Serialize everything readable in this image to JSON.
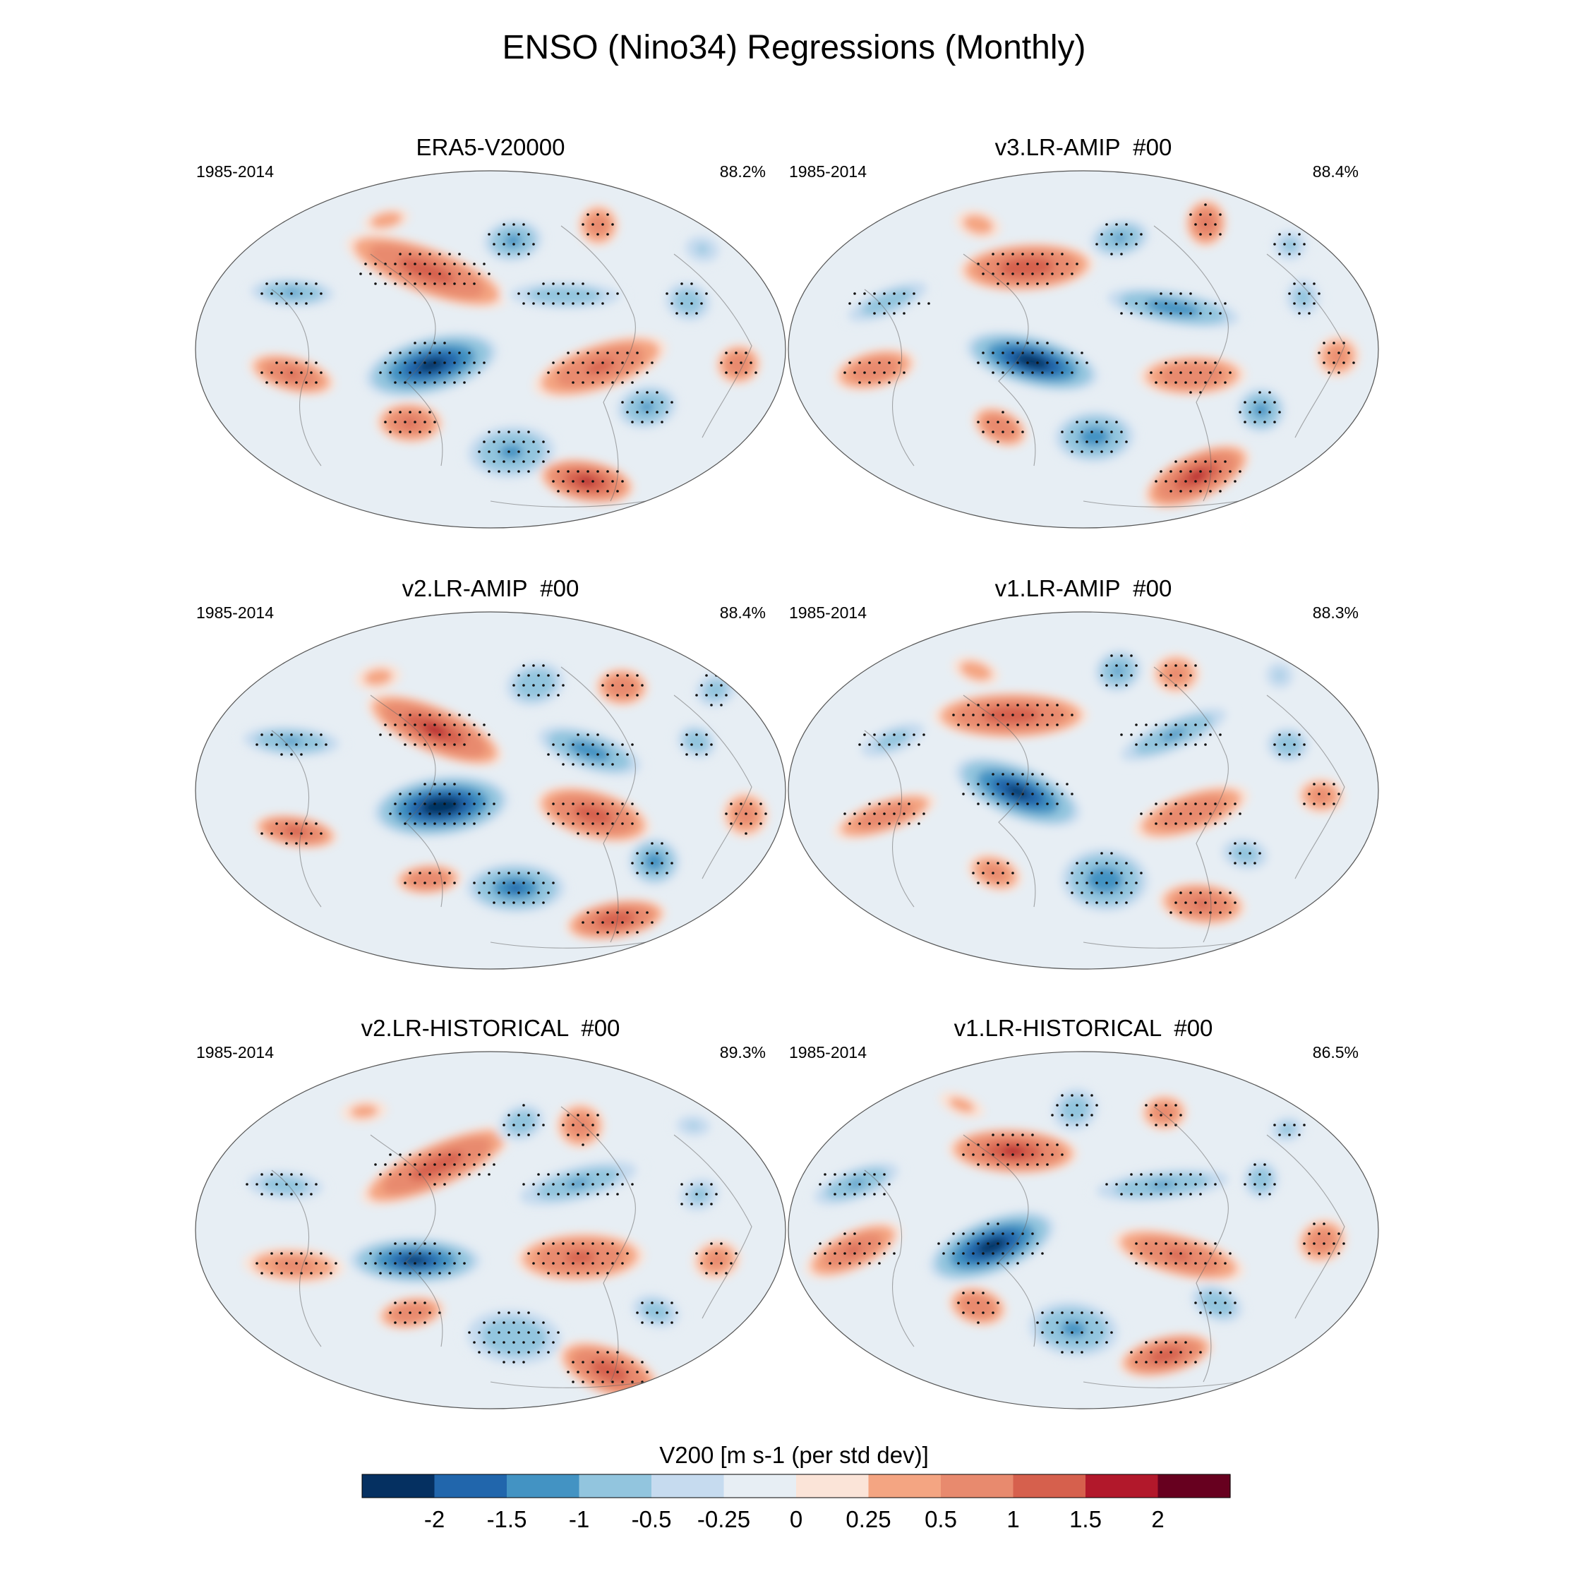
{
  "title": "ENSO (Nino34) Regressions (Monthly)",
  "chart_data": {
    "type": "heatmap",
    "variable_label": "V200 [m s-1 (per std dev)]",
    "projection": "global map (elliptical)",
    "colorbar": {
      "tick_labels": [
        "-2",
        "-1.5",
        "-1",
        "-0.5",
        "-0.25",
        "0",
        "0.25",
        "0.5",
        "1",
        "1.5",
        "2"
      ],
      "colors": [
        "#053061",
        "#2166ac",
        "#4393c3",
        "#92c5de",
        "#c6dbef",
        "#e7eef4",
        "#fbe4d8",
        "#f4a582",
        "#e88a6e",
        "#d6604d",
        "#b2182b",
        "#67001f"
      ]
    },
    "panels": [
      {
        "name": "ERA5-V20000",
        "period": "1985-2014",
        "pattern_stat": "88.2%"
      },
      {
        "name": "v3.LR-AMIP  #00",
        "period": "1985-2014",
        "pattern_stat": "88.4%"
      },
      {
        "name": "v2.LR-AMIP  #00",
        "period": "1985-2014",
        "pattern_stat": "88.4%"
      },
      {
        "name": "v1.LR-AMIP  #00",
        "period": "1985-2014",
        "pattern_stat": "88.3%"
      },
      {
        "name": "v2.LR-HISTORICAL  #00",
        "period": "1985-2014",
        "pattern_stat": "89.3%"
      },
      {
        "name": "v1.LR-HISTORICAL  #00",
        "period": "1985-2014",
        "pattern_stat": "86.5%"
      }
    ]
  }
}
